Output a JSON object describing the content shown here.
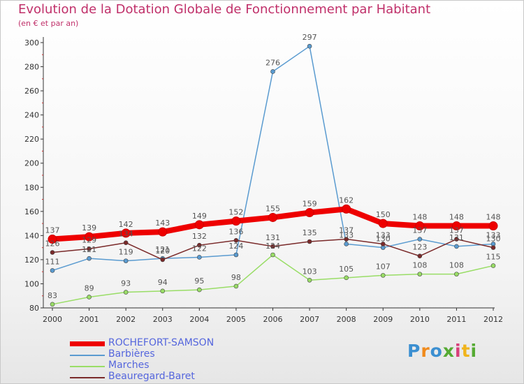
{
  "chart_data": {
    "type": "line",
    "title": "Evolution de la Dotation Globale de Fonctionnement par Habitant",
    "subtitle": "(en € et par an)",
    "xlabel": "",
    "ylabel": "",
    "ylim": [
      80,
      300
    ],
    "yticks": [
      80,
      100,
      120,
      140,
      160,
      180,
      200,
      220,
      240,
      260,
      280,
      300
    ],
    "categories": [
      "2000",
      "2001",
      "2002",
      "2003",
      "2004",
      "2005",
      "2006",
      "2007",
      "2008",
      "2009",
      "2010",
      "2011",
      "2012"
    ],
    "grid": false,
    "legend_position": "bottom-left",
    "series": [
      {
        "name": "ROCHEFORT-SAMSON",
        "color": "#ee0000",
        "values": [
          137,
          139,
          142,
          143,
          149,
          152,
          155,
          159,
          162,
          150,
          148,
          148,
          148
        ]
      },
      {
        "name": "Barbières",
        "color": "#5a9bd0",
        "values": [
          111,
          121,
          119,
          121,
          122,
          124,
          276,
          297,
          133,
          130,
          137,
          131,
          133
        ]
      },
      {
        "name": "Marches",
        "color": "#99dd66",
        "values": [
          83,
          89,
          93,
          94,
          95,
          98,
          124,
          103,
          105,
          107,
          108,
          108,
          115
        ]
      },
      {
        "name": "Beauregard-Baret",
        "color": "#7a2a2a",
        "values": [
          126,
          129,
          134,
          120,
          132,
          136,
          131,
          135,
          137,
          133,
          123,
          137,
          130
        ]
      }
    ]
  },
  "logo": {
    "letters": [
      "P",
      "r",
      "o",
      "x",
      "i",
      "t",
      "i"
    ]
  }
}
